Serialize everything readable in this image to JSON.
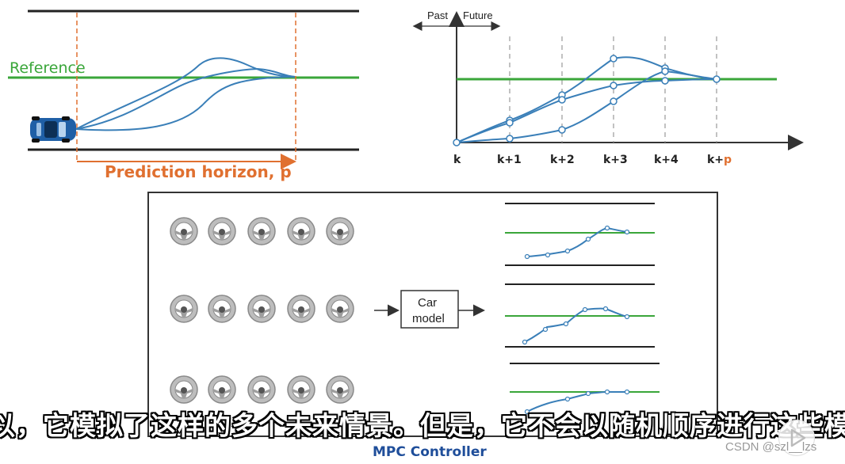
{
  "colors": {
    "road": "#222222",
    "reference": "#3aa63a",
    "trajectory": "#3a7fb8",
    "horizon": "#e07030",
    "axis": "#333333",
    "dashed": "#999999",
    "frame": "#333333",
    "subtitle": "#ffffff",
    "controller_title": "#1f4e9a"
  },
  "left_diagram": {
    "reference_label": "Reference",
    "horizon_label": "Prediction horizon, p",
    "icons": [
      "car-icon"
    ]
  },
  "right_diagram": {
    "past_label": "Past",
    "future_label": "Future",
    "tick_k": "k",
    "tick_k1": "k+1",
    "tick_k2": "k+2",
    "tick_k3": "k+3",
    "tick_k4": "k+4",
    "tick_kp_prefix": "k+",
    "tick_kp_suffix": "p"
  },
  "controller": {
    "title": "MPC Controller",
    "car_model_line1": "Car",
    "car_model_line2": "model",
    "icons": [
      "steering-wheel-icon"
    ]
  },
  "subtitle": "以，它模拟了这样的多个未来情景。但是，它不会以随机顺序进行这些模",
  "watermark": "CSDN @szl__lzs"
}
